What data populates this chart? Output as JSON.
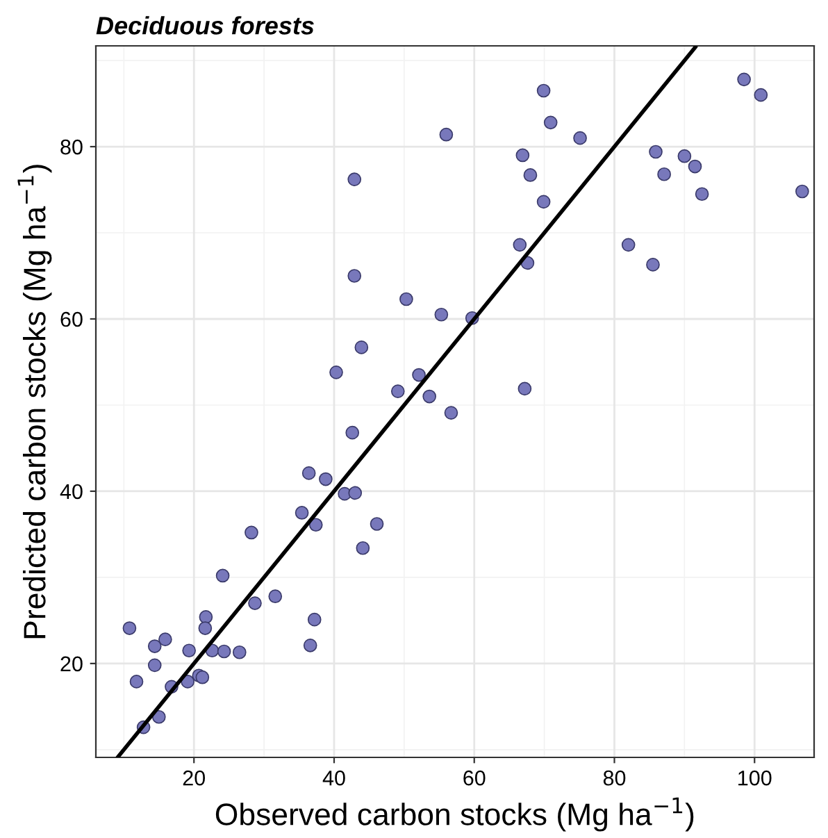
{
  "chart_data": {
    "type": "scatter",
    "title": "Deciduous forests",
    "xlabel": "Observed carbon stocks (Mg ha$^{−1}$)",
    "ylabel": "Predicted carbon stocks (Mg ha$^{−1}$)",
    "xlim": [
      6,
      108.5
    ],
    "ylim": [
      9.1,
      91.7
    ],
    "xticks": [
      20,
      40,
      60,
      80,
      100
    ],
    "yticks": [
      20,
      40,
      60,
      80
    ],
    "grid": true,
    "series": [
      {
        "marker": "circle",
        "color": "#7878bb",
        "x": [
          10.8,
          11.8,
          12.8,
          15.0,
          14.4,
          14.4,
          15.9,
          16.8,
          19.3,
          19.1,
          20.7,
          21.2,
          21.7,
          21.6,
          22.6,
          24.3,
          26.5,
          24.1,
          28.2,
          28.7,
          31.6,
          37.2,
          36.6,
          44.1,
          50.3,
          55.3,
          59.7,
          43.9,
          40.3,
          52.1,
          49.1,
          53.6,
          56.7,
          67.2,
          42.6,
          36.4,
          38.8,
          41.5,
          43.0,
          35.4,
          37.4,
          46.1,
          42.9,
          42.9,
          56.0,
          69.9,
          70.9,
          75.1,
          66.9,
          68.0,
          69.9,
          66.5,
          67.6,
          98.5,
          100.9,
          85.9,
          90.0,
          91.5,
          87.1,
          92.5,
          106.8,
          82.0,
          85.5
        ],
        "values": [
          24.1,
          17.9,
          12.6,
          13.8,
          19.8,
          22.0,
          22.8,
          17.3,
          21.5,
          17.9,
          18.6,
          18.4,
          25.4,
          24.1,
          21.5,
          21.4,
          21.3,
          30.2,
          35.2,
          27.0,
          27.8,
          25.1,
          22.1,
          33.4,
          62.3,
          60.5,
          60.1,
          56.7,
          53.8,
          53.5,
          51.6,
          51.0,
          49.1,
          51.9,
          46.8,
          42.1,
          41.4,
          39.7,
          39.8,
          37.5,
          36.1,
          36.2,
          65.0,
          76.2,
          81.4,
          86.5,
          82.8,
          81.0,
          79.0,
          76.7,
          73.6,
          68.6,
          66.5,
          87.8,
          86.0,
          79.4,
          78.9,
          77.7,
          76.8,
          74.5,
          74.8,
          68.6,
          66.3
        ]
      },
      {
        "type": "line",
        "color": "#000000",
        "line_style": "solid",
        "x": [
          9.1,
          91.6
        ],
        "values": [
          9.1,
          91.6
        ]
      }
    ]
  }
}
